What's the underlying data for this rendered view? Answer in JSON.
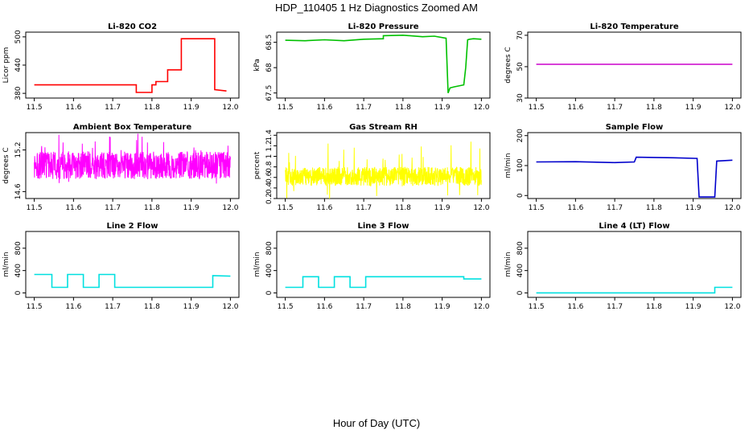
{
  "figure": {
    "title": "HDP_110405  1 Hz Diagnostics Zoomed AM",
    "xlabel": "Hour of Day (UTC)"
  },
  "chart_data": [
    {
      "type": "line",
      "title": "Li-820 CO2",
      "ylabel": "Licor ppm",
      "color": "#ff0000",
      "xlim": [
        11.5,
        12.0
      ],
      "ylim": [
        370,
        510
      ],
      "xticks": [
        "11.5",
        "11.6",
        "11.7",
        "11.8",
        "11.9",
        "12.0"
      ],
      "yticks": [
        380,
        440,
        500
      ],
      "series": [
        {
          "x": [
            11.5,
            11.76,
            11.76,
            11.8,
            11.8,
            11.81,
            11.81,
            11.84,
            11.84,
            11.875,
            11.875,
            11.96,
            11.96,
            11.99
          ],
          "y": [
            398,
            398,
            382,
            382,
            398,
            398,
            405,
            405,
            430,
            430,
            496,
            496,
            388,
            385
          ]
        }
      ]
    },
    {
      "type": "line",
      "title": "Li-820 Pressure",
      "ylabel": "kPa",
      "color": "#00c000",
      "xlim": [
        11.5,
        12.0
      ],
      "ylim": [
        67.4,
        68.7
      ],
      "xticks": [
        "11.5",
        "11.6",
        "11.7",
        "11.8",
        "11.9",
        "12.0"
      ],
      "yticks": [
        67.5,
        68.0,
        68.5
      ],
      "series": [
        {
          "x": [
            11.5,
            11.55,
            11.6,
            11.65,
            11.7,
            11.75,
            11.75,
            11.8,
            11.85,
            11.88,
            11.91,
            11.915,
            11.92,
            11.93,
            11.955,
            11.96,
            11.965,
            11.97,
            11.98,
            12.0
          ],
          "y": [
            68.54,
            68.53,
            68.55,
            68.53,
            68.56,
            68.57,
            68.63,
            68.64,
            68.61,
            68.62,
            68.58,
            67.5,
            67.6,
            67.62,
            67.66,
            68.0,
            68.55,
            68.56,
            68.57,
            68.56
          ]
        }
      ]
    },
    {
      "type": "line",
      "title": "Li-820 Temperature",
      "ylabel": "degrees C",
      "color": "#cc00cc",
      "xlim": [
        11.5,
        12.0
      ],
      "ylim": [
        30,
        72
      ],
      "xticks": [
        "11.5",
        "11.6",
        "11.7",
        "11.8",
        "11.9",
        "12.0"
      ],
      "yticks": [
        30,
        50,
        70
      ],
      "series": [
        {
          "x": [
            11.5,
            12.0
          ],
          "y": [
            51.5,
            51.5
          ]
        }
      ]
    },
    {
      "type": "line",
      "title": "Ambient Box Temperature",
      "ylabel": "degrees C",
      "color": "#ff00ff",
      "xlim": [
        11.5,
        12.0
      ],
      "ylim": [
        14.5,
        15.45
      ],
      "xticks": [
        "11.5",
        "11.6",
        "11.7",
        "11.8",
        "11.9",
        "12.0"
      ],
      "yticks": [
        14.6,
        15.2
      ],
      "noise": {
        "center": 14.98,
        "amplitude": 0.2,
        "spike": 0.38
      }
    },
    {
      "type": "line",
      "title": "Gas Stream RH",
      "ylabel": "percent",
      "color": "#ffff00",
      "xlim": [
        11.5,
        12.0
      ],
      "ylim": [
        0.2,
        1.45
      ],
      "xticks": [
        "11.5",
        "11.6",
        "11.7",
        "11.8",
        "11.9",
        "12.0"
      ],
      "yticks": [
        0.2,
        0.4,
        0.6,
        0.8,
        1.0,
        1.2,
        1.4
      ],
      "noise": {
        "center": 0.62,
        "amplitude": 0.18,
        "spike": 0.6
      }
    },
    {
      "type": "line",
      "title": "Sample Flow",
      "ylabel": "ml/min",
      "color": "#0000cc",
      "xlim": [
        11.5,
        12.0
      ],
      "ylim": [
        -10,
        210
      ],
      "xticks": [
        "11.5",
        "11.6",
        "11.7",
        "11.8",
        "11.9",
        "12.0"
      ],
      "yticks": [
        0,
        100,
        200
      ],
      "series": [
        {
          "x": [
            11.5,
            11.6,
            11.7,
            11.75,
            11.755,
            11.8,
            11.85,
            11.91,
            11.915,
            11.955,
            11.96,
            12.0
          ],
          "y": [
            112,
            113,
            110,
            112,
            128,
            127,
            126,
            124,
            -5,
            -5,
            115,
            118
          ]
        }
      ]
    },
    {
      "type": "line",
      "title": "Line 2 Flow",
      "ylabel": "ml/min",
      "color": "#00e0e0",
      "xlim": [
        11.5,
        12.0
      ],
      "ylim": [
        -80,
        1100
      ],
      "xticks": [
        "11.5",
        "11.6",
        "11.7",
        "11.8",
        "11.9",
        "12.0"
      ],
      "yticks": [
        0,
        400,
        800
      ],
      "series": [
        {
          "x": [
            11.5,
            11.545,
            11.545,
            11.585,
            11.585,
            11.625,
            11.625,
            11.665,
            11.665,
            11.705,
            11.705,
            11.955,
            11.955,
            12.0
          ],
          "y": [
            330,
            330,
            100,
            100,
            330,
            330,
            100,
            100,
            330,
            330,
            100,
            100,
            310,
            300
          ]
        }
      ]
    },
    {
      "type": "line",
      "title": "Line 3 Flow",
      "ylabel": "ml/min",
      "color": "#00e0e0",
      "xlim": [
        11.5,
        12.0
      ],
      "ylim": [
        -80,
        1100
      ],
      "xticks": [
        "11.5",
        "11.6",
        "11.7",
        "11.8",
        "11.9",
        "12.0"
      ],
      "yticks": [
        0,
        400,
        800
      ],
      "series": [
        {
          "x": [
            11.5,
            11.545,
            11.545,
            11.585,
            11.585,
            11.625,
            11.625,
            11.665,
            11.665,
            11.705,
            11.705,
            11.955,
            11.955,
            12.0
          ],
          "y": [
            100,
            100,
            290,
            290,
            100,
            100,
            290,
            290,
            100,
            100,
            290,
            290,
            250,
            250
          ]
        }
      ]
    },
    {
      "type": "line",
      "title": "Line 4 (LT) Flow",
      "ylabel": "ml/min",
      "color": "#00e0e0",
      "xlim": [
        11.5,
        12.0
      ],
      "ylim": [
        -80,
        1100
      ],
      "xticks": [
        "11.5",
        "11.6",
        "11.7",
        "11.8",
        "11.9",
        "12.0"
      ],
      "yticks": [
        0,
        400,
        800
      ],
      "series": [
        {
          "x": [
            11.5,
            11.955,
            11.955,
            12.0
          ],
          "y": [
            0,
            0,
            100,
            100
          ]
        }
      ]
    }
  ]
}
